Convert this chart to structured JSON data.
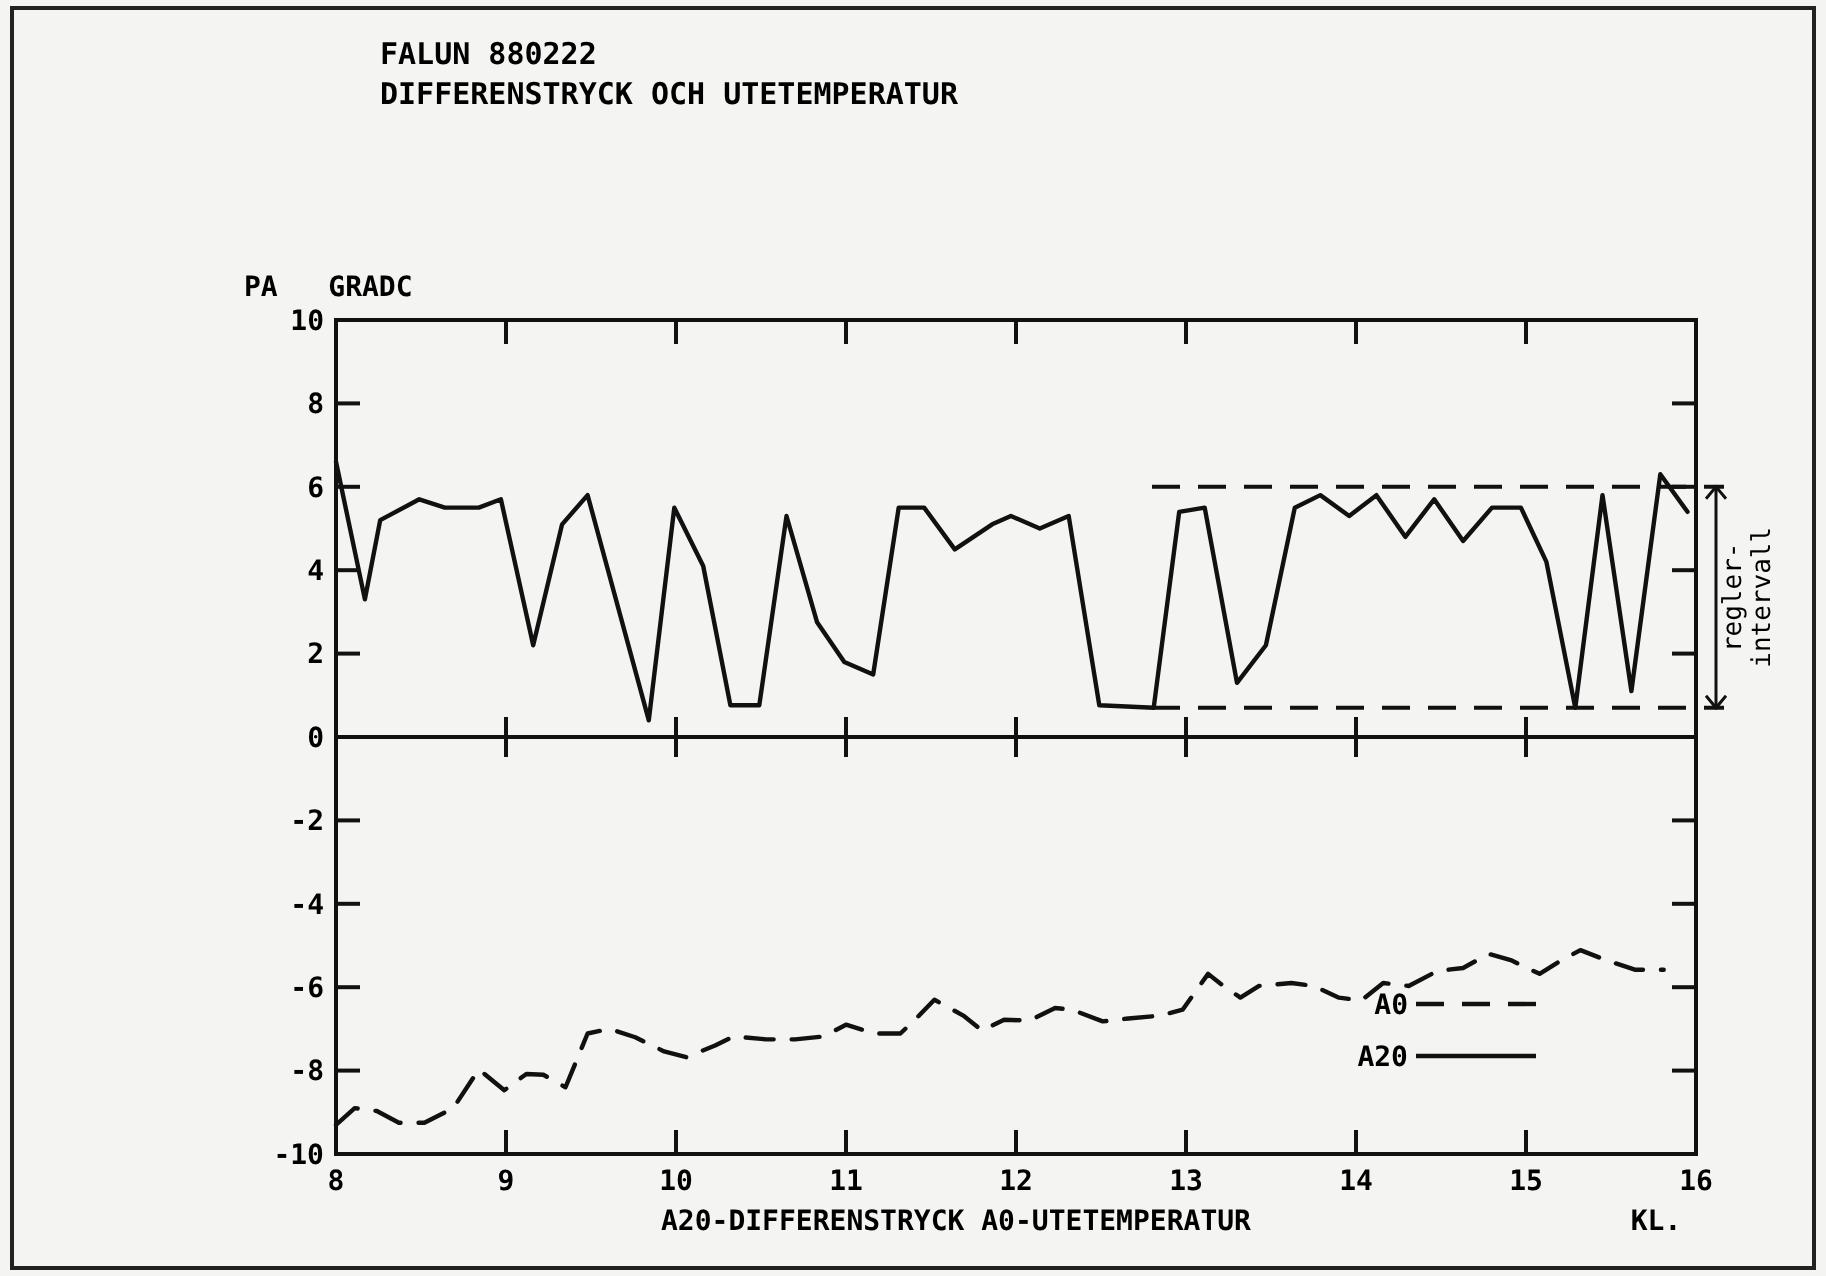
{
  "chart_data": {
    "type": "line",
    "title": "FALUN 880222",
    "subtitle": "DIFFERENSTRYCK OCH UTETEMPERATUR",
    "ylabel": "PA   GRADC",
    "xlabel": "A20-DIFFERENSTRYCK A0-UTETEMPERATUR",
    "annotations": [
      "KL.",
      "regler-intervall"
    ],
    "xlim": [
      8,
      16
    ],
    "xticks": [
      8,
      9,
      10,
      11,
      12,
      13,
      14,
      15,
      16
    ],
    "ylim": [
      -10,
      10
    ],
    "yticks": [
      -10,
      -8,
      -6,
      -4,
      -2,
      0,
      2,
      4,
      6,
      8,
      10
    ],
    "grid": false,
    "legend": "bottom right",
    "ref_lines": [
      {
        "axis": "y",
        "value": 0,
        "line_style": "solid"
      },
      {
        "axis": "y",
        "value": 6,
        "line_style": "dashed"
      },
      {
        "axis": "y",
        "value": 0.7,
        "line_style": "dashed"
      }
    ],
    "series": [
      {
        "name": "A0",
        "color": "#111111",
        "line_style": "dashed",
        "x": [
          8.0,
          8.11,
          8.24,
          8.37,
          8.52,
          8.69,
          8.84,
          8.99,
          9.12,
          9.22,
          9.35,
          9.48,
          9.61,
          9.76,
          9.93,
          10.06,
          10.23,
          10.34,
          10.53,
          10.7,
          10.87,
          11.0,
          11.17,
          11.32,
          11.43,
          11.52,
          11.69,
          11.8,
          11.93,
          12.08,
          12.23,
          12.33,
          12.51,
          12.66,
          12.85,
          12.98,
          13.13,
          13.22,
          13.32,
          13.43,
          13.62,
          13.75,
          13.9,
          14.03,
          14.16,
          14.31,
          14.48,
          14.63,
          14.78,
          14.91,
          15.08,
          15.19,
          15.32,
          15.47,
          15.64,
          15.81
        ],
        "values": [
          -9.3,
          -8.9,
          -8.97,
          -9.25,
          -9.25,
          -8.9,
          -7.97,
          -8.47,
          -8.08,
          -8.1,
          -8.4,
          -7.11,
          -7.0,
          -7.2,
          -7.54,
          -7.68,
          -7.4,
          -7.18,
          -7.25,
          -7.25,
          -7.18,
          -6.9,
          -7.11,
          -7.11,
          -6.68,
          -6.3,
          -6.68,
          -7.04,
          -6.78,
          -6.8,
          -6.5,
          -6.54,
          -6.82,
          -6.75,
          -6.68,
          -6.54,
          -5.68,
          -5.97,
          -6.25,
          -5.97,
          -5.9,
          -5.97,
          -6.25,
          -6.32,
          -5.9,
          -5.97,
          -5.61,
          -5.54,
          -5.2,
          -5.35,
          -5.68,
          -5.4,
          -5.11,
          -5.35,
          -5.58,
          -5.58
        ]
      },
      {
        "name": "A20",
        "color": "#111111",
        "line_style": "solid",
        "x": [
          8.0,
          8.17,
          8.26,
          8.49,
          8.64,
          8.84,
          8.97,
          9.16,
          9.33,
          9.48,
          9.84,
          9.99,
          10.16,
          10.32,
          10.49,
          10.65,
          10.83,
          10.99,
          11.16,
          11.31,
          11.46,
          11.64,
          11.86,
          11.97,
          12.14,
          12.31,
          12.49,
          12.81,
          12.96,
          13.11,
          13.3,
          13.47,
          13.64,
          13.79,
          13.96,
          14.12,
          14.29,
          14.46,
          14.63,
          14.8,
          14.97,
          15.12,
          15.29,
          15.45,
          15.62,
          15.79,
          15.95
        ],
        "values": [
          6.6,
          3.3,
          5.2,
          5.7,
          5.5,
          5.5,
          5.7,
          2.2,
          5.1,
          5.8,
          0.4,
          5.5,
          4.1,
          0.76,
          0.76,
          5.3,
          2.75,
          1.8,
          1.5,
          5.5,
          5.5,
          4.5,
          5.1,
          5.3,
          5.0,
          5.3,
          0.76,
          0.7,
          5.4,
          5.5,
          1.3,
          2.2,
          5.5,
          5.8,
          5.3,
          5.8,
          4.8,
          5.7,
          4.7,
          5.5,
          5.5,
          4.2,
          0.7,
          5.8,
          1.1,
          6.3,
          5.4
        ]
      }
    ]
  }
}
